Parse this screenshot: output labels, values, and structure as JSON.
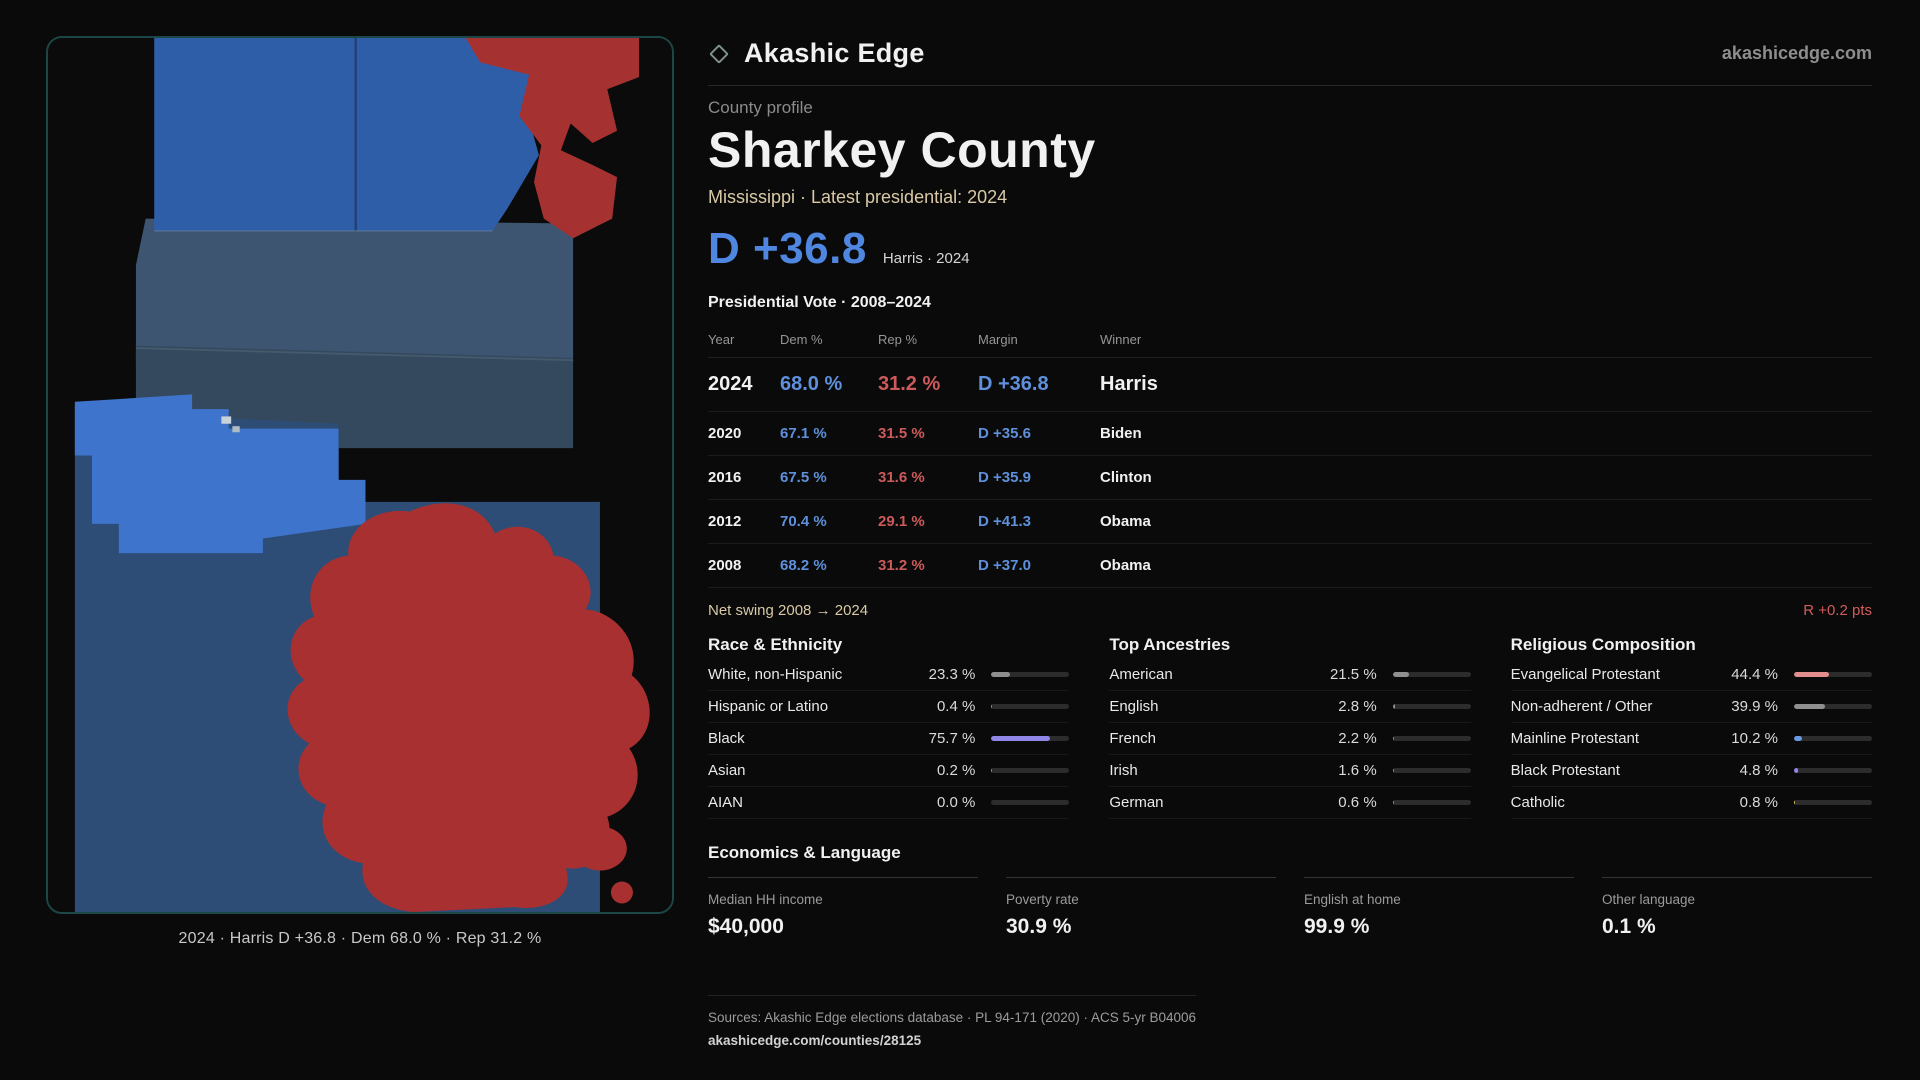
{
  "brand": {
    "name": "Akashic Edge",
    "site": "akashicedge.com"
  },
  "map": {
    "caption": "2024 · Harris D +36.8 · Dem 68.0 % · Rep 31.2 %",
    "colors": {
      "dem_strong": "#2f5ea9",
      "dem_mid_band": "#3d5570",
      "dem_dark": "#2d4d77",
      "dem_bright": "#3f74cc",
      "rep": "#a83030",
      "card_border": "#1c4746"
    }
  },
  "profile": {
    "kicker": "County profile",
    "title": "Sharkey County",
    "subtitle": "Mississippi · Latest presidential: 2024",
    "headline_value": "D +36.8",
    "headline_context": "Harris · 2024"
  },
  "vote_table": {
    "title": "Presidential Vote · 2008–2024",
    "columns": [
      "Year",
      "Dem %",
      "Rep %",
      "Margin",
      "Winner"
    ],
    "rows": [
      {
        "year": "2024",
        "dem": "68.0 %",
        "rep": "31.2 %",
        "margin": "D +36.8",
        "winner": "Harris"
      },
      {
        "year": "2020",
        "dem": "67.1 %",
        "rep": "31.5 %",
        "margin": "D +35.6",
        "winner": "Biden"
      },
      {
        "year": "2016",
        "dem": "67.5 %",
        "rep": "31.6 %",
        "margin": "D +35.9",
        "winner": "Clinton"
      },
      {
        "year": "2012",
        "dem": "70.4 %",
        "rep": "29.1 %",
        "margin": "D +41.3",
        "winner": "Obama"
      },
      {
        "year": "2008",
        "dem": "68.2 %",
        "rep": "31.2 %",
        "margin": "D +37.0",
        "winner": "Obama"
      }
    ],
    "net_swing_label": "Net swing 2008 → 2024",
    "net_swing_value": "R +0.2 pts"
  },
  "demographics": {
    "race": {
      "title": "Race & Ethnicity",
      "rows": [
        {
          "label": "White, non-Hispanic",
          "value": "23.3 %",
          "pct": 23.3,
          "color": "#8f8f8f"
        },
        {
          "label": "Hispanic or Latino",
          "value": "0.4 %",
          "pct": 0.4,
          "color": "#8f8f8f"
        },
        {
          "label": "Black",
          "value": "75.7 %",
          "pct": 75.7,
          "color": "#8f86e8"
        },
        {
          "label": "Asian",
          "value": "0.2 %",
          "pct": 0.2,
          "color": "#8f8f8f"
        },
        {
          "label": "AIAN",
          "value": "0.0 %",
          "pct": 0,
          "color": "#8f8f8f"
        }
      ]
    },
    "ancestry": {
      "title": "Top Ancestries",
      "rows": [
        {
          "label": "American",
          "value": "21.5 %",
          "pct": 21.5,
          "color": "#8f8f8f"
        },
        {
          "label": "English",
          "value": "2.8 %",
          "pct": 2.8,
          "color": "#8f8f8f"
        },
        {
          "label": "French",
          "value": "2.2 %",
          "pct": 2.2,
          "color": "#8f8f8f"
        },
        {
          "label": "Irish",
          "value": "1.6 %",
          "pct": 1.6,
          "color": "#8f8f8f"
        },
        {
          "label": "German",
          "value": "0.6 %",
          "pct": 0.6,
          "color": "#8f8f8f"
        }
      ]
    },
    "religion": {
      "title": "Religious Composition",
      "rows": [
        {
          "label": "Evangelical Protestant",
          "value": "44.4 %",
          "pct": 44.4,
          "color": "#e28e8e"
        },
        {
          "label": "Non-adherent / Other",
          "value": "39.9 %",
          "pct": 39.9,
          "color": "#8f8f8f"
        },
        {
          "label": "Mainline Protestant",
          "value": "10.2 %",
          "pct": 10.2,
          "color": "#6b9ae4"
        },
        {
          "label": "Black Protestant",
          "value": "4.8 %",
          "pct": 4.8,
          "color": "#8f86e8"
        },
        {
          "label": "Catholic",
          "value": "0.8 %",
          "pct": 0.8,
          "color": "#d4c254"
        }
      ]
    }
  },
  "economics": {
    "title": "Economics & Language",
    "stats": [
      {
        "label": "Median HH income",
        "value": "$40,000"
      },
      {
        "label": "Poverty rate",
        "value": "30.9 %"
      },
      {
        "label": "English at home",
        "value": "99.9 %"
      },
      {
        "label": "Other language",
        "value": "0.1 %"
      }
    ]
  },
  "footer": {
    "sources": "Sources: Akashic Edge elections database · PL 94-171 (2020) · ACS 5-yr B04006",
    "permalink": "akashicedge.com/counties/28125"
  }
}
